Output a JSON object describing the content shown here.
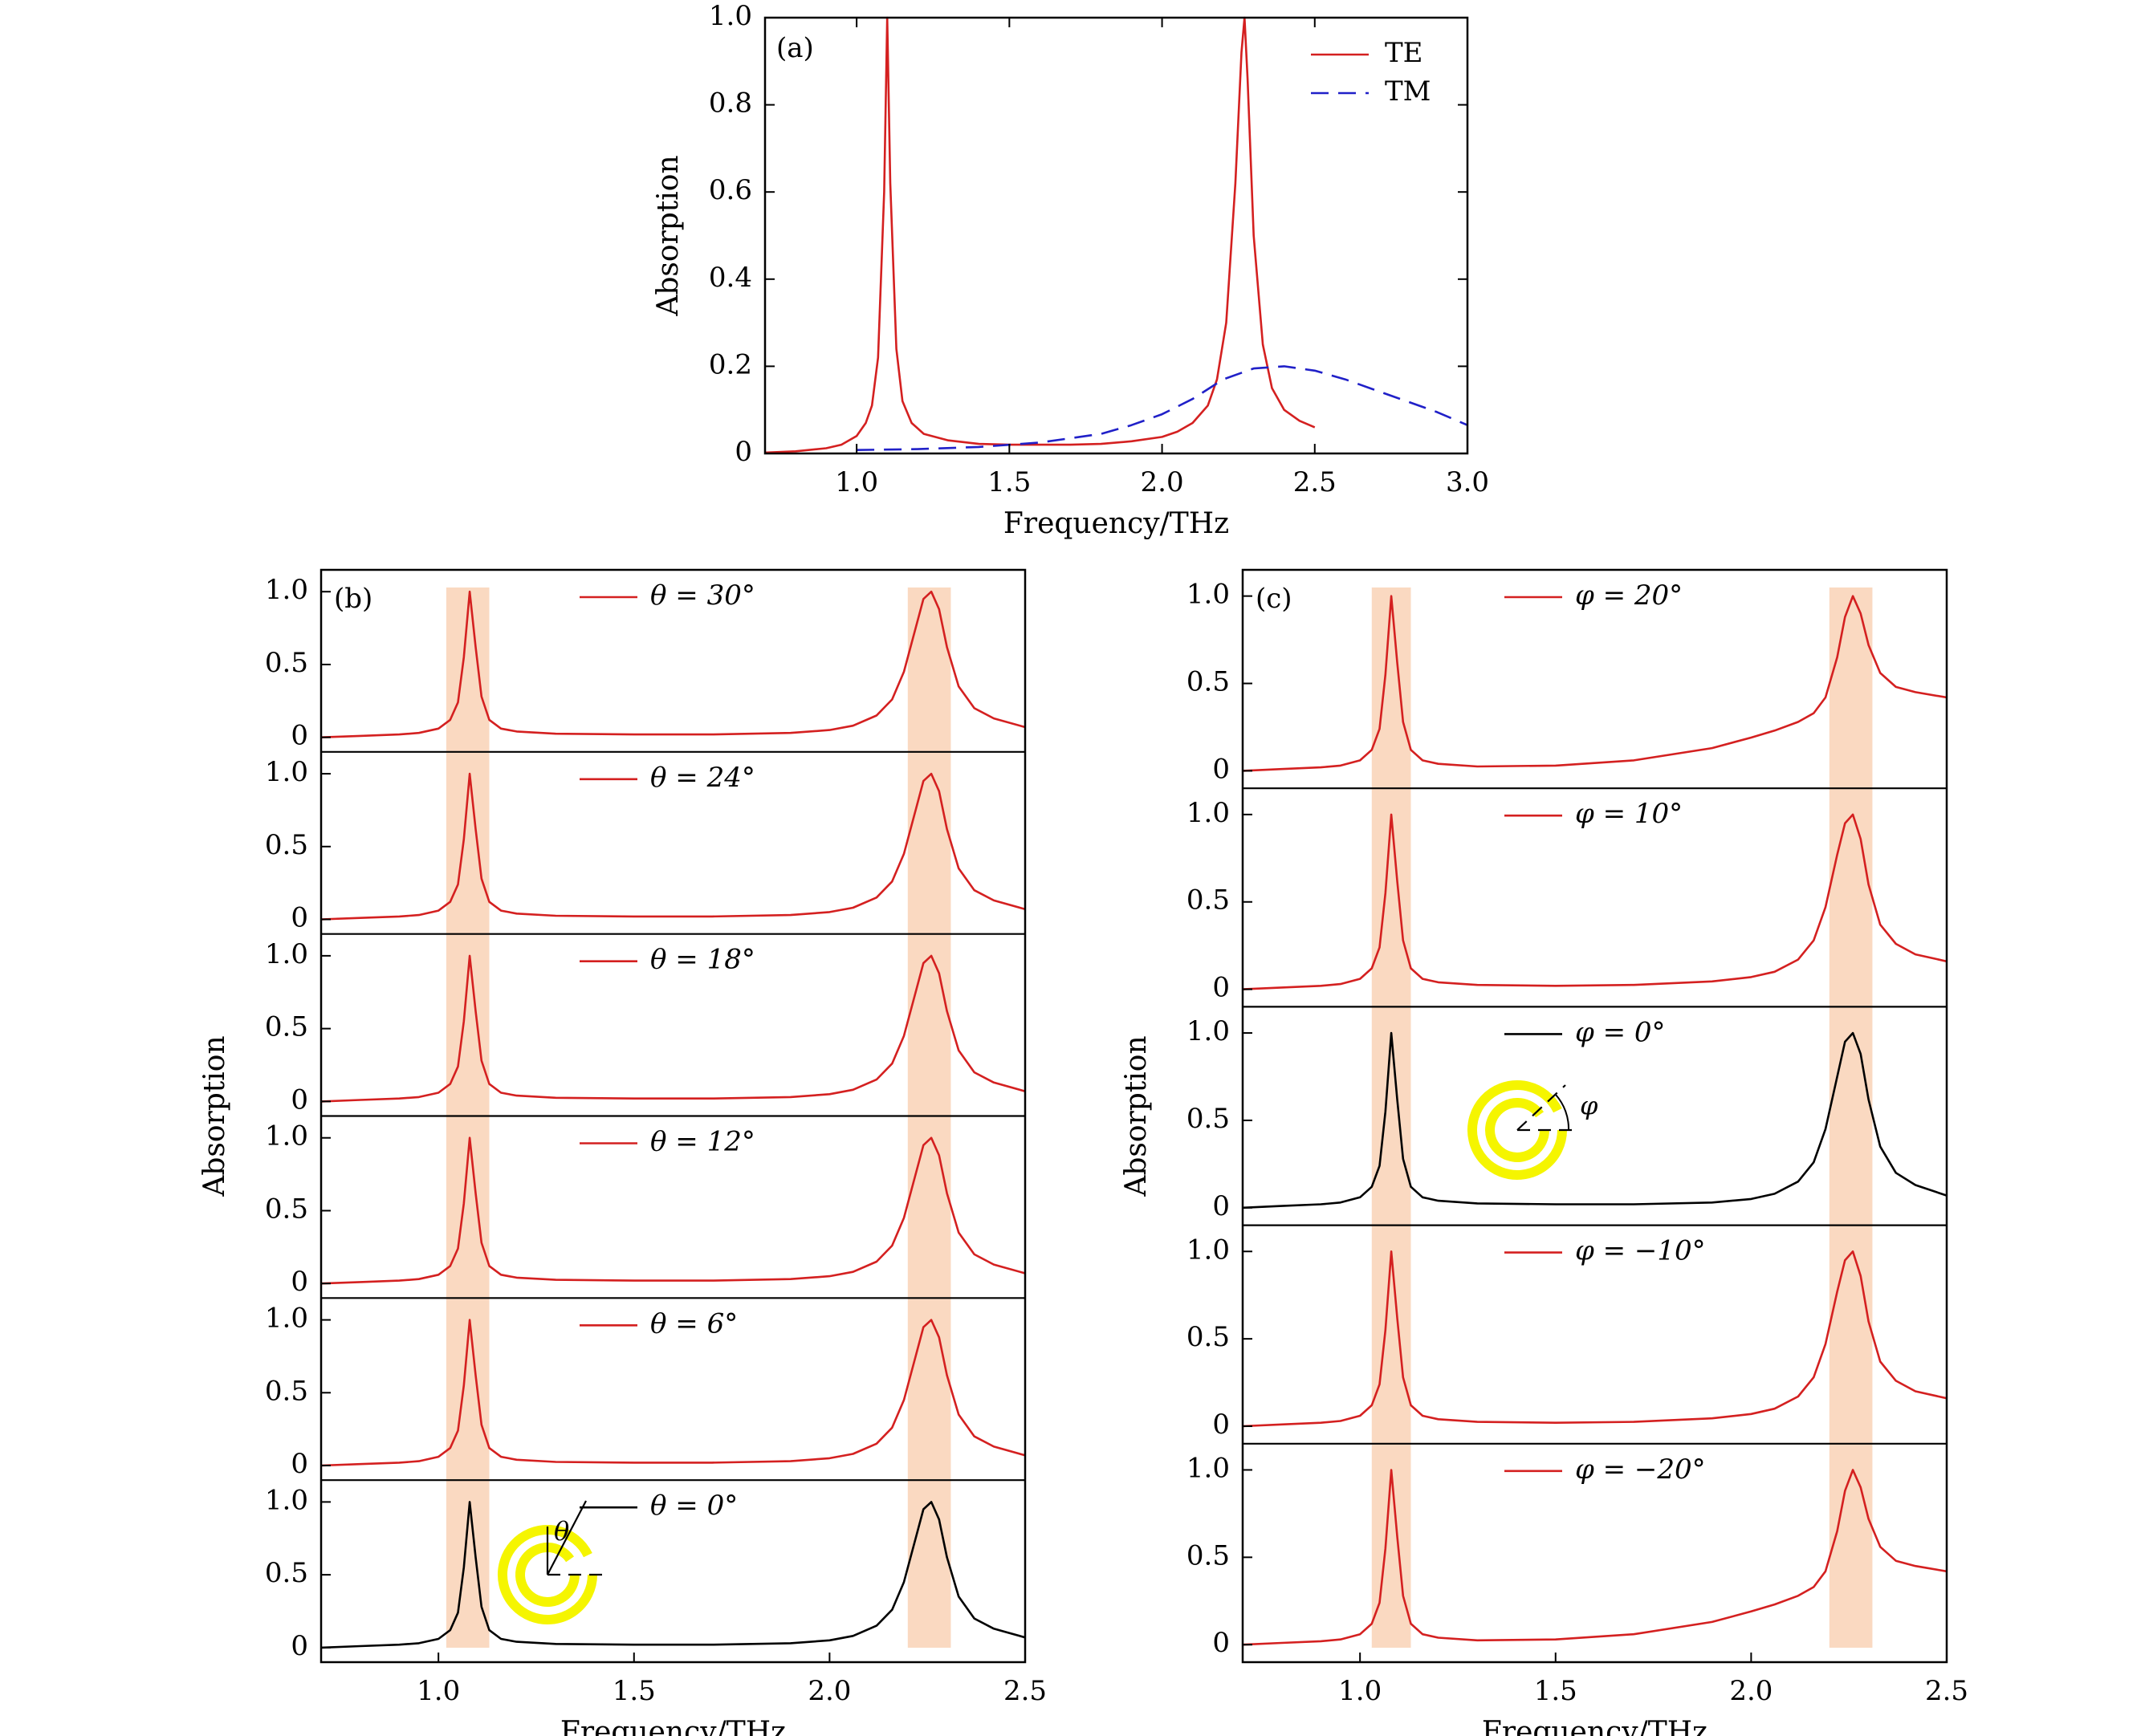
{
  "chart_data": [
    {
      "id": "a",
      "type": "line",
      "panel_label": "(a)",
      "xlabel": "Frequency/THz",
      "ylabel": "Absorption",
      "xlim": [
        0.7,
        3.0
      ],
      "ylim": [
        0,
        1.0
      ],
      "xticks": [
        1.0,
        1.5,
        2.0,
        2.5,
        3.0
      ],
      "xtick_labels": [
        "1.0",
        "1.5",
        "2.0",
        "2.5",
        "3.0"
      ],
      "yticks": [
        0,
        0.2,
        0.4,
        0.6,
        0.8,
        1.0
      ],
      "ytick_labels": [
        "0",
        "0.2",
        "0.4",
        "0.6",
        "0.8",
        "1.0"
      ],
      "legend": "top-right",
      "series": [
        {
          "name": "TE",
          "color": "#d42020",
          "style": "solid",
          "x": [
            0.7,
            0.8,
            0.9,
            0.95,
            1.0,
            1.03,
            1.05,
            1.07,
            1.09,
            1.1,
            1.11,
            1.13,
            1.15,
            1.18,
            1.22,
            1.3,
            1.4,
            1.5,
            1.6,
            1.7,
            1.8,
            1.9,
            2.0,
            2.05,
            2.1,
            2.15,
            2.18,
            2.21,
            2.24,
            2.26,
            2.27,
            2.28,
            2.3,
            2.33,
            2.36,
            2.4,
            2.45,
            2.5
          ],
          "y": [
            0.002,
            0.005,
            0.012,
            0.02,
            0.04,
            0.07,
            0.11,
            0.22,
            0.6,
            1.0,
            0.62,
            0.24,
            0.12,
            0.07,
            0.045,
            0.03,
            0.022,
            0.02,
            0.02,
            0.02,
            0.022,
            0.028,
            0.038,
            0.05,
            0.07,
            0.11,
            0.17,
            0.3,
            0.62,
            0.92,
            1.0,
            0.86,
            0.5,
            0.25,
            0.15,
            0.1,
            0.075,
            0.06
          ]
        },
        {
          "name": "TM",
          "color": "#2020c8",
          "style": "dashed",
          "x": [
            1.0,
            1.2,
            1.4,
            1.6,
            1.8,
            1.9,
            2.0,
            2.1,
            2.2,
            2.3,
            2.4,
            2.5,
            2.6,
            2.7,
            2.8,
            2.9,
            3.0
          ],
          "y": [
            0.008,
            0.01,
            0.015,
            0.025,
            0.045,
            0.065,
            0.09,
            0.125,
            0.17,
            0.195,
            0.2,
            0.19,
            0.17,
            0.145,
            0.12,
            0.095,
            0.065
          ]
        }
      ]
    },
    {
      "id": "b",
      "type": "line",
      "panel_label": "(b)",
      "xlabel": "Frequency/THz",
      "ylabel": "Absorption",
      "xlim": [
        0.7,
        2.5
      ],
      "ylim": [
        -0.1,
        1.15
      ],
      "xticks": [
        1.0,
        1.5,
        2.0,
        2.5
      ],
      "xtick_labels": [
        "1.0",
        "1.5",
        "2.0",
        "2.5"
      ],
      "yticks": [
        0,
        0.5,
        1.0
      ],
      "ytick_labels": [
        "0",
        "0.5",
        "1.0"
      ],
      "highlight_bands": [
        [
          1.02,
          1.13
        ],
        [
          2.2,
          2.31
        ]
      ],
      "highlight_color": "#fad9c1",
      "inset_symbol": "θ",
      "x": [
        0.7,
        0.8,
        0.9,
        0.95,
        1.0,
        1.03,
        1.05,
        1.065,
        1.08,
        1.095,
        1.11,
        1.13,
        1.16,
        1.2,
        1.3,
        1.5,
        1.7,
        1.9,
        2.0,
        2.06,
        2.12,
        2.16,
        2.19,
        2.22,
        2.24,
        2.26,
        2.28,
        2.3,
        2.33,
        2.37,
        2.42,
        2.5
      ],
      "subplots": [
        {
          "legend": "θ = 30°",
          "color": "#d42020",
          "y": [
            0.0,
            0.01,
            0.02,
            0.03,
            0.06,
            0.12,
            0.24,
            0.55,
            1.0,
            0.62,
            0.28,
            0.12,
            0.06,
            0.04,
            0.025,
            0.02,
            0.02,
            0.03,
            0.05,
            0.08,
            0.15,
            0.26,
            0.45,
            0.75,
            0.95,
            1.0,
            0.88,
            0.62,
            0.35,
            0.2,
            0.13,
            0.07
          ]
        },
        {
          "legend": "θ = 24°",
          "color": "#d42020",
          "y": [
            0.0,
            0.01,
            0.02,
            0.03,
            0.06,
            0.12,
            0.24,
            0.55,
            1.0,
            0.62,
            0.28,
            0.12,
            0.06,
            0.04,
            0.025,
            0.02,
            0.02,
            0.03,
            0.05,
            0.08,
            0.15,
            0.26,
            0.45,
            0.75,
            0.95,
            1.0,
            0.88,
            0.62,
            0.35,
            0.2,
            0.13,
            0.07
          ]
        },
        {
          "legend": "θ = 18°",
          "color": "#d42020",
          "y": [
            0.0,
            0.01,
            0.02,
            0.03,
            0.06,
            0.12,
            0.24,
            0.55,
            1.0,
            0.62,
            0.28,
            0.12,
            0.06,
            0.04,
            0.025,
            0.02,
            0.02,
            0.03,
            0.05,
            0.08,
            0.15,
            0.26,
            0.45,
            0.75,
            0.95,
            1.0,
            0.88,
            0.62,
            0.35,
            0.2,
            0.13,
            0.07
          ]
        },
        {
          "legend": "θ = 12°",
          "color": "#d42020",
          "y": [
            0.0,
            0.01,
            0.02,
            0.03,
            0.06,
            0.12,
            0.24,
            0.55,
            1.0,
            0.62,
            0.28,
            0.12,
            0.06,
            0.04,
            0.025,
            0.02,
            0.02,
            0.03,
            0.05,
            0.08,
            0.15,
            0.26,
            0.45,
            0.75,
            0.95,
            1.0,
            0.88,
            0.62,
            0.35,
            0.2,
            0.13,
            0.07
          ]
        },
        {
          "legend": "θ = 6°",
          "color": "#d42020",
          "y": [
            0.0,
            0.01,
            0.02,
            0.03,
            0.06,
            0.12,
            0.24,
            0.55,
            1.0,
            0.62,
            0.28,
            0.12,
            0.06,
            0.04,
            0.025,
            0.02,
            0.02,
            0.03,
            0.05,
            0.08,
            0.15,
            0.26,
            0.45,
            0.75,
            0.95,
            1.0,
            0.88,
            0.62,
            0.35,
            0.2,
            0.13,
            0.07
          ]
        },
        {
          "legend": "θ = 0°",
          "color": "#000000",
          "y": [
            0.0,
            0.01,
            0.02,
            0.03,
            0.06,
            0.12,
            0.24,
            0.55,
            1.0,
            0.62,
            0.28,
            0.12,
            0.06,
            0.04,
            0.025,
            0.02,
            0.02,
            0.03,
            0.05,
            0.08,
            0.15,
            0.26,
            0.45,
            0.75,
            0.95,
            1.0,
            0.88,
            0.62,
            0.35,
            0.2,
            0.13,
            0.07
          ]
        }
      ]
    },
    {
      "id": "c",
      "type": "line",
      "panel_label": "(c)",
      "xlabel": "Frequency/THz",
      "ylabel": "Absorption",
      "xlim": [
        0.7,
        2.5
      ],
      "ylim": [
        -0.1,
        1.15
      ],
      "xticks": [
        1.0,
        1.5,
        2.0,
        2.5
      ],
      "xtick_labels": [
        "1.0",
        "1.5",
        "2.0",
        "2.5"
      ],
      "yticks": [
        0,
        0.5,
        1.0
      ],
      "ytick_labels": [
        "0",
        "0.5",
        "1.0"
      ],
      "highlight_bands": [
        [
          1.03,
          1.13
        ],
        [
          2.2,
          2.31
        ]
      ],
      "highlight_color": "#fad9c1",
      "inset_symbol": "φ",
      "x": [
        0.7,
        0.8,
        0.9,
        0.95,
        1.0,
        1.03,
        1.05,
        1.065,
        1.08,
        1.095,
        1.11,
        1.13,
        1.16,
        1.2,
        1.3,
        1.5,
        1.7,
        1.9,
        2.0,
        2.06,
        2.12,
        2.16,
        2.19,
        2.22,
        2.24,
        2.26,
        2.28,
        2.3,
        2.33,
        2.37,
        2.42,
        2.5
      ],
      "subplots": [
        {
          "legend": "φ = 20°",
          "color": "#d42020",
          "y": [
            0.0,
            0.01,
            0.02,
            0.03,
            0.06,
            0.12,
            0.24,
            0.55,
            1.0,
            0.62,
            0.28,
            0.12,
            0.06,
            0.04,
            0.025,
            0.03,
            0.06,
            0.13,
            0.19,
            0.23,
            0.28,
            0.33,
            0.42,
            0.65,
            0.88,
            1.0,
            0.9,
            0.72,
            0.56,
            0.48,
            0.45,
            0.42
          ]
        },
        {
          "legend": "φ = 10°",
          "color": "#d42020",
          "y": [
            0.0,
            0.01,
            0.02,
            0.03,
            0.06,
            0.12,
            0.24,
            0.55,
            1.0,
            0.62,
            0.28,
            0.12,
            0.06,
            0.04,
            0.025,
            0.02,
            0.025,
            0.045,
            0.07,
            0.1,
            0.17,
            0.28,
            0.47,
            0.77,
            0.95,
            1.0,
            0.86,
            0.6,
            0.37,
            0.26,
            0.2,
            0.16
          ]
        },
        {
          "legend": "φ = 0°",
          "color": "#000000",
          "y": [
            0.0,
            0.01,
            0.02,
            0.03,
            0.06,
            0.12,
            0.24,
            0.55,
            1.0,
            0.62,
            0.28,
            0.12,
            0.06,
            0.04,
            0.025,
            0.02,
            0.02,
            0.03,
            0.05,
            0.08,
            0.15,
            0.26,
            0.45,
            0.75,
            0.95,
            1.0,
            0.88,
            0.62,
            0.35,
            0.2,
            0.13,
            0.07
          ]
        },
        {
          "legend": "φ = −10°",
          "color": "#d42020",
          "y": [
            0.0,
            0.01,
            0.02,
            0.03,
            0.06,
            0.12,
            0.24,
            0.55,
            1.0,
            0.62,
            0.28,
            0.12,
            0.06,
            0.04,
            0.025,
            0.02,
            0.025,
            0.045,
            0.07,
            0.1,
            0.17,
            0.28,
            0.47,
            0.77,
            0.95,
            1.0,
            0.86,
            0.6,
            0.37,
            0.26,
            0.2,
            0.16
          ]
        },
        {
          "legend": "φ = −20°",
          "color": "#d42020",
          "y": [
            0.0,
            0.01,
            0.02,
            0.03,
            0.06,
            0.12,
            0.24,
            0.55,
            1.0,
            0.62,
            0.28,
            0.12,
            0.06,
            0.04,
            0.025,
            0.03,
            0.06,
            0.13,
            0.19,
            0.23,
            0.28,
            0.33,
            0.42,
            0.65,
            0.88,
            1.0,
            0.9,
            0.72,
            0.56,
            0.48,
            0.45,
            0.42
          ]
        }
      ]
    }
  ]
}
